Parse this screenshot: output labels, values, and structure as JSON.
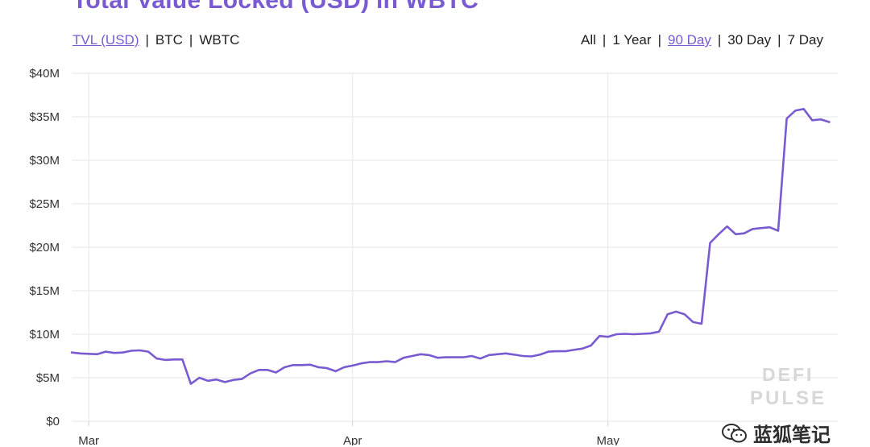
{
  "title": "Total Value Locked (USD) in WBTC",
  "metric_tabs": [
    {
      "label": "TVL (USD)",
      "active": true
    },
    {
      "label": "BTC",
      "active": false
    },
    {
      "label": "WBTC",
      "active": false
    }
  ],
  "range_tabs": [
    {
      "label": "All",
      "active": false
    },
    {
      "label": "1 Year",
      "active": false
    },
    {
      "label": "90 Day",
      "active": true
    },
    {
      "label": "30 Day",
      "active": false
    },
    {
      "label": "7 Day",
      "active": false
    }
  ],
  "separator": "|",
  "watermark": {
    "line1": "DEFI",
    "line2": "PULSE"
  },
  "account": {
    "label": "蓝狐笔记",
    "icon": "wechat-icon"
  },
  "colors": {
    "line": "#7a5ad0",
    "accent": "#7a5ad0",
    "grid": "#e6e6e6"
  },
  "chart_data": {
    "type": "line",
    "title": "Total Value Locked (USD) in WBTC",
    "xlabel": "",
    "ylabel": "",
    "x_range_days": [
      0,
      90
    ],
    "x_ticks": [
      {
        "label": "Mar",
        "day": 2
      },
      {
        "label": "Apr",
        "day": 33
      },
      {
        "label": "May",
        "day": 63
      }
    ],
    "y_ticks": [
      "$0",
      "$5M",
      "$10M",
      "$15M",
      "$20M",
      "$25M",
      "$30M",
      "$35M",
      "$40M"
    ],
    "ylim": [
      0,
      40
    ],
    "y_unit": "$M",
    "grid": true,
    "series": [
      {
        "name": "",
        "color": "#7a5ad0",
        "points": [
          [
            0,
            7.9
          ],
          [
            1,
            7.8
          ],
          [
            2,
            7.75
          ],
          [
            3,
            7.7
          ],
          [
            4,
            8.0
          ],
          [
            5,
            7.85
          ],
          [
            6,
            7.9
          ],
          [
            7,
            8.1
          ],
          [
            8,
            8.15
          ],
          [
            9,
            8.0
          ],
          [
            10,
            7.2
          ],
          [
            11,
            7.05
          ],
          [
            12,
            7.1
          ],
          [
            13,
            7.1
          ],
          [
            14,
            4.3
          ],
          [
            15,
            5.0
          ],
          [
            16,
            4.65
          ],
          [
            17,
            4.8
          ],
          [
            18,
            4.5
          ],
          [
            19,
            4.75
          ],
          [
            20,
            4.85
          ],
          [
            21,
            5.5
          ],
          [
            22,
            5.9
          ],
          [
            23,
            5.9
          ],
          [
            24,
            5.6
          ],
          [
            25,
            6.2
          ],
          [
            26,
            6.45
          ],
          [
            27,
            6.45
          ],
          [
            28,
            6.5
          ],
          [
            29,
            6.2
          ],
          [
            30,
            6.1
          ],
          [
            31,
            5.75
          ],
          [
            32,
            6.2
          ],
          [
            33,
            6.4
          ],
          [
            34,
            6.65
          ],
          [
            35,
            6.8
          ],
          [
            36,
            6.8
          ],
          [
            37,
            6.9
          ],
          [
            38,
            6.8
          ],
          [
            39,
            7.3
          ],
          [
            40,
            7.5
          ],
          [
            41,
            7.7
          ],
          [
            42,
            7.6
          ],
          [
            43,
            7.3
          ],
          [
            44,
            7.35
          ],
          [
            45,
            7.35
          ],
          [
            46,
            7.35
          ],
          [
            47,
            7.5
          ],
          [
            48,
            7.2
          ],
          [
            49,
            7.6
          ],
          [
            50,
            7.7
          ],
          [
            51,
            7.8
          ],
          [
            52,
            7.65
          ],
          [
            53,
            7.5
          ],
          [
            54,
            7.45
          ],
          [
            55,
            7.65
          ],
          [
            56,
            8.0
          ],
          [
            57,
            8.05
          ],
          [
            58,
            8.05
          ],
          [
            59,
            8.2
          ],
          [
            60,
            8.35
          ],
          [
            61,
            8.7
          ],
          [
            62,
            9.8
          ],
          [
            63,
            9.7
          ],
          [
            64,
            10.0
          ],
          [
            65,
            10.05
          ],
          [
            66,
            10.0
          ],
          [
            67,
            10.05
          ],
          [
            68,
            10.1
          ],
          [
            69,
            10.3
          ],
          [
            70,
            12.3
          ],
          [
            71,
            12.6
          ],
          [
            72,
            12.3
          ],
          [
            73,
            11.4
          ],
          [
            74,
            11.2
          ],
          [
            75,
            20.5
          ],
          [
            76,
            21.5
          ],
          [
            77,
            22.4
          ],
          [
            78,
            21.5
          ],
          [
            79,
            21.6
          ],
          [
            80,
            22.1
          ],
          [
            81,
            22.2
          ],
          [
            82,
            22.3
          ],
          [
            83,
            21.9
          ],
          [
            84,
            34.8
          ],
          [
            85,
            35.7
          ],
          [
            86,
            35.9
          ],
          [
            87,
            34.6
          ],
          [
            88,
            34.7
          ],
          [
            89,
            34.4
          ]
        ]
      }
    ]
  }
}
